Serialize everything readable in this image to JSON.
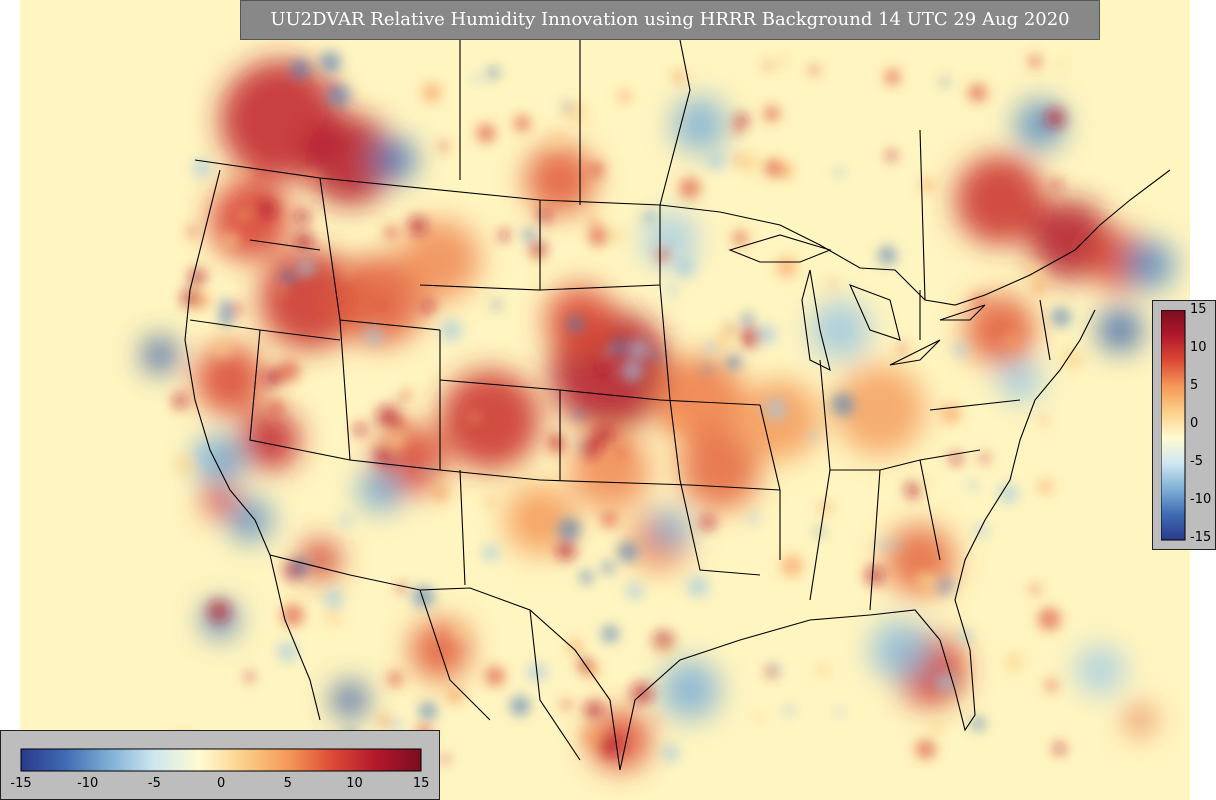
{
  "title": "UU2DVAR Relative Humidity Innovation using HRRR Background 14 UTC 29 Aug 2020",
  "colorbar": {
    "ticks": [
      "15",
      "10",
      "5",
      "0",
      "-5",
      "-10",
      "-15"
    ],
    "bottom_ticks": [
      "-15",
      "-10",
      "-5",
      "0",
      "5",
      "10",
      "15"
    ],
    "range": [
      -15,
      15
    ],
    "colors": [
      "#2a3a8c",
      "#3f6bb3",
      "#7fb0d6",
      "#cfe7f0",
      "#fffbd2",
      "#fcd08a",
      "#f59a5a",
      "#dc4b35",
      "#b2182b",
      "#7a0d1f"
    ]
  },
  "legend_colors": {
    "background_field": "#fff7c2",
    "positive_max": "#b2182b",
    "negative_max": "#2a4f9e"
  }
}
